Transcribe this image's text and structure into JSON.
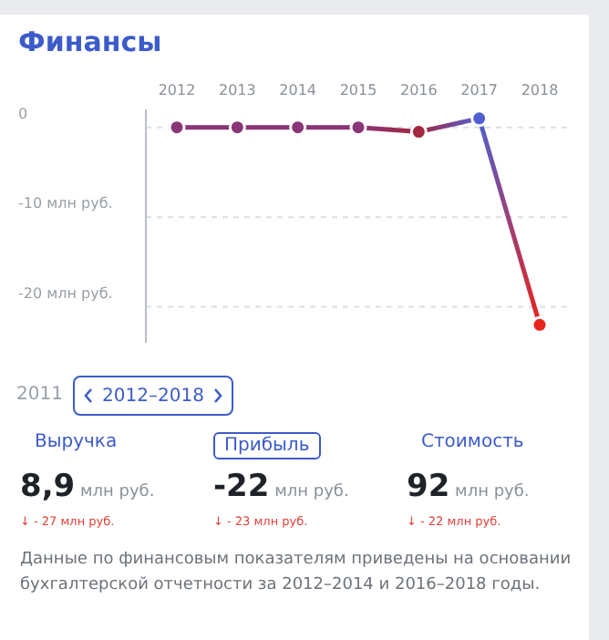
{
  "chart_data": {
    "type": "line",
    "title": "Финансы",
    "categories": [
      "2012",
      "2013",
      "2014",
      "2015",
      "2016",
      "2017",
      "2018"
    ],
    "values": [
      0,
      0,
      0,
      0,
      -0.5,
      1,
      -22
    ],
    "colors": [
      "#8a3577",
      "#8a3577",
      "#8a3577",
      "#8a3577",
      "#a3273f",
      "#4f5fcf",
      "#e8231e"
    ],
    "yticks": [
      {
        "value": 0,
        "label": "0"
      },
      {
        "value": -10,
        "label": "-10 млн руб."
      },
      {
        "value": -20,
        "label": "-20 млн руб."
      }
    ],
    "ylim": [
      -24,
      2
    ],
    "grid": "y",
    "marker": "circle",
    "line_style": "solid",
    "annotations": [
      "2011",
      "2012–2018",
      "Выручка",
      "Прибыль",
      "Стоимость",
      "8,9 млн руб.",
      "-22 млн руб.",
      "92 млн руб.",
      "↓ - 27 млн руб.",
      "↓ - 23 млн руб.",
      "↓ - 22 млн руб.",
      "Данные по финансовым показателям приведены на основании бухгалтерской отчетности за 2012–2014 и 2016–2018 годы."
    ]
  }
}
